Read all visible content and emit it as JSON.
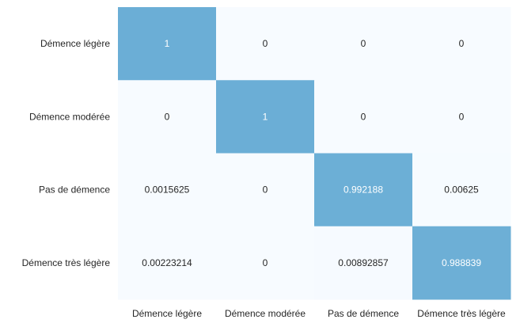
{
  "chart_data": {
    "type": "heatmap",
    "title": "",
    "xlabel": "",
    "ylabel": "",
    "rows": [
      "Démence légère",
      "Démence modérée",
      "Pas de démence",
      "Démence très légère"
    ],
    "columns": [
      "Démence légère",
      "Démence modérée",
      "Pas de démence",
      "Démence très légère"
    ],
    "values": [
      [
        1,
        0,
        0,
        0
      ],
      [
        0,
        1,
        0,
        0
      ],
      [
        0.0015625,
        0,
        0.992188,
        0.00625
      ],
      [
        0.00223214,
        0,
        0.00892857,
        0.988839
      ]
    ],
    "value_labels": [
      [
        "1",
        "0",
        "0",
        "0"
      ],
      [
        "0",
        "1",
        "0",
        "0"
      ],
      [
        "0.0015625",
        "0",
        "0.992188",
        "0.00625"
      ],
      [
        "0.00223214",
        "0",
        "0.00892857",
        "0.988839"
      ]
    ],
    "colormap": {
      "low": "#f7fbff",
      "high": "#6baed6"
    },
    "colorbar": false,
    "grid": false
  }
}
